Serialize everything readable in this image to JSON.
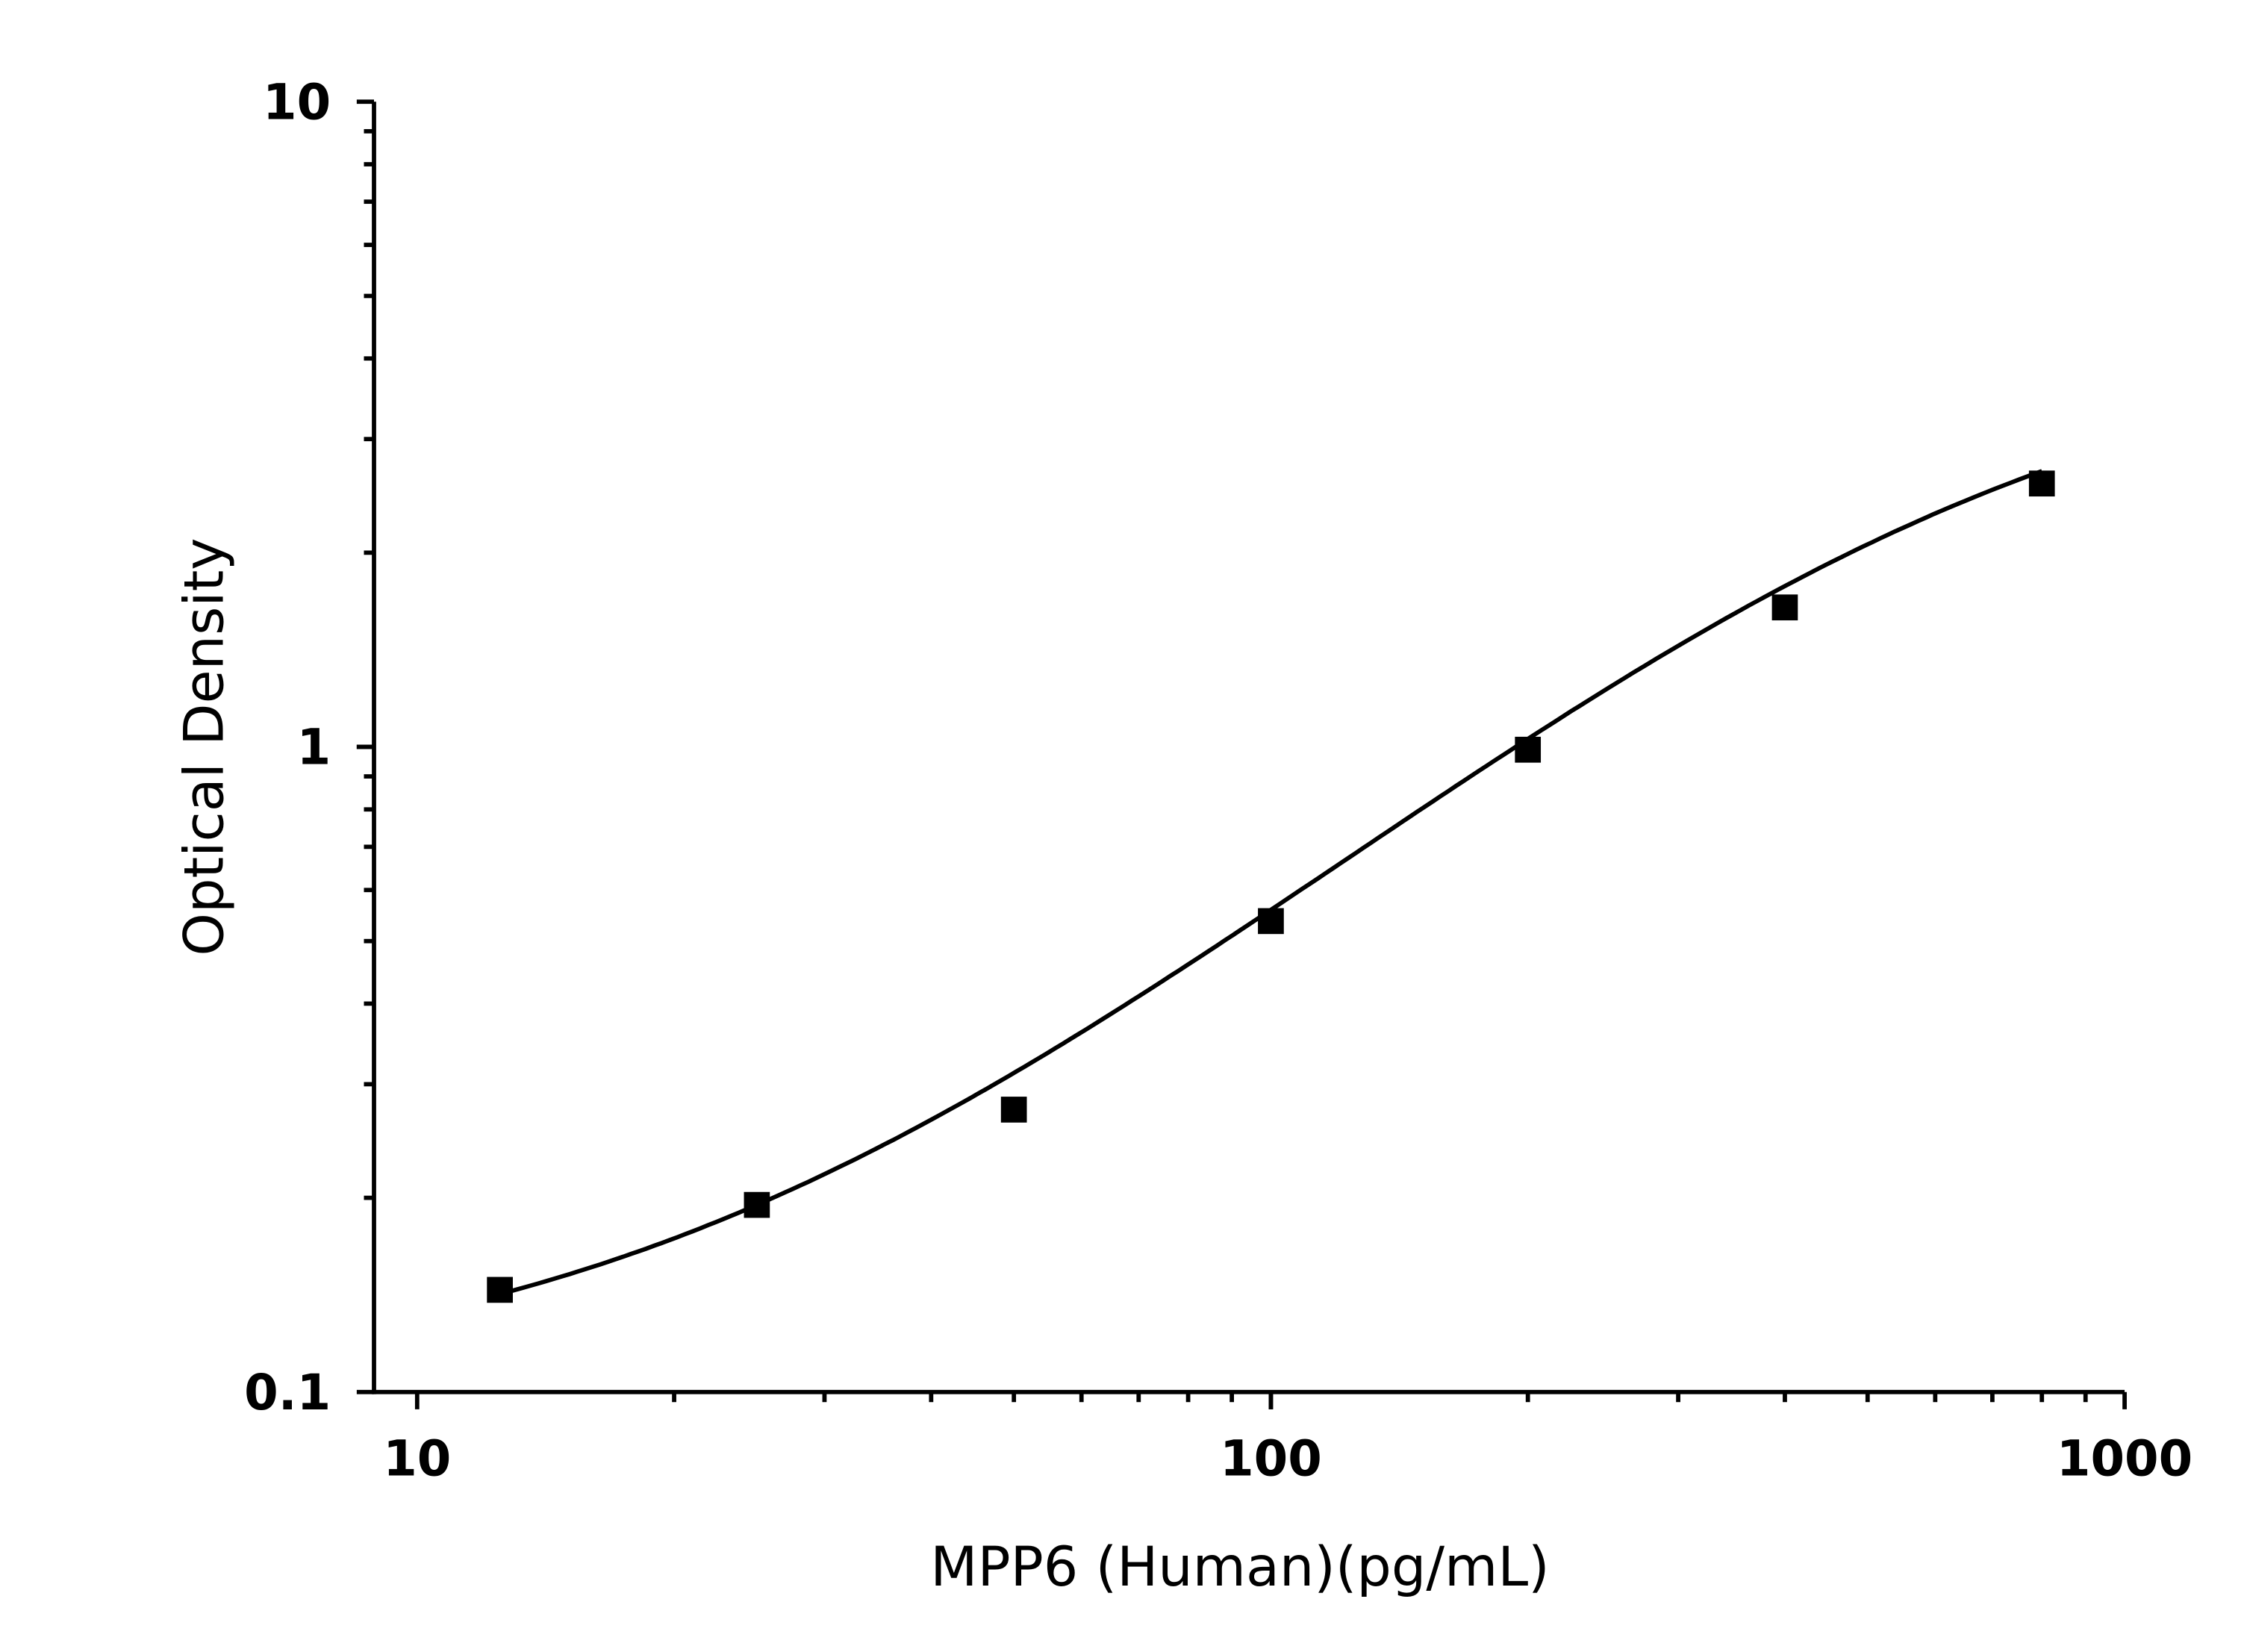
{
  "chart_data": {
    "type": "scatter",
    "title": "",
    "xlabel": "MPP6 (Human)(pg/mL)",
    "ylabel": "Optical Density",
    "x_scale": "log",
    "y_scale": "log",
    "xlim": [
      8.9,
      1000
    ],
    "ylim": [
      0.1,
      10
    ],
    "x_ticks": [
      {
        "value": 10,
        "label": "10"
      },
      {
        "value": 100,
        "label": "100"
      },
      {
        "value": 1000,
        "label": "1000"
      }
    ],
    "y_ticks": [
      {
        "value": 0.1,
        "label": "0.1"
      },
      {
        "value": 1,
        "label": "1"
      },
      {
        "value": 10,
        "label": "10"
      }
    ],
    "grid": false,
    "legend": "none",
    "marker": "square",
    "color": "#000000",
    "fit_line": "4-parameter logistic",
    "series": [
      {
        "x": [
          12.5,
          25,
          50,
          100,
          200,
          400,
          800
        ],
        "y": [
          0.144,
          0.195,
          0.274,
          0.537,
          0.99,
          1.645,
          2.56
        ]
      }
    ]
  }
}
